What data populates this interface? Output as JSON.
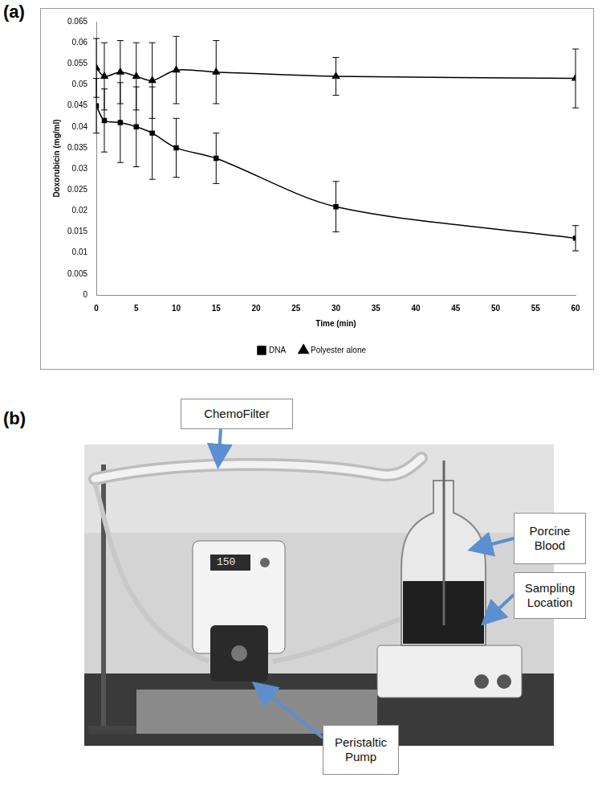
{
  "panel_letters": [
    "(a)",
    "(b)"
  ],
  "chart_data": {
    "type": "line",
    "xlabel": "Time (min)",
    "ylabel": "Doxorubicin (mg/ml)",
    "x": [
      0,
      1,
      3,
      5,
      7,
      10,
      15,
      30,
      60
    ],
    "series": [
      {
        "name": "DNA",
        "color": "#000000",
        "marker": "square",
        "values": [
          0.045,
          0.0415,
          0.041,
          0.04,
          0.0385,
          0.035,
          0.0325,
          0.021,
          0.0135
        ],
        "errors": [
          0.0065,
          0.0075,
          0.0095,
          0.0095,
          0.011,
          0.007,
          0.006,
          0.006,
          0.003
        ]
      },
      {
        "name": "Polyester alone",
        "color": "#000000",
        "marker": "triangle",
        "values": [
          0.054,
          0.052,
          0.053,
          0.052,
          0.051,
          0.0535,
          0.053,
          0.052,
          0.0515
        ],
        "errors": [
          0.007,
          0.008,
          0.0075,
          0.008,
          0.009,
          0.008,
          0.0075,
          0.0045,
          0.007
        ]
      }
    ],
    "xlim": [
      0,
      60
    ],
    "xticks": [
      0,
      5,
      10,
      15,
      20,
      25,
      30,
      35,
      40,
      45,
      50,
      55,
      60
    ],
    "ylim": [
      0,
      0.065
    ],
    "yticks": [
      0,
      0.005,
      0.01,
      0.015,
      0.02,
      0.025,
      0.03,
      0.035,
      0.04,
      0.045,
      0.05,
      0.055,
      0.06,
      0.065
    ],
    "grid": false,
    "legend": "bottom"
  },
  "photo": {
    "callouts": [
      "ChemoFilter",
      "Porcine Blood",
      "Sampling Location",
      "Peristaltic Pump"
    ],
    "pump_display": "150"
  }
}
